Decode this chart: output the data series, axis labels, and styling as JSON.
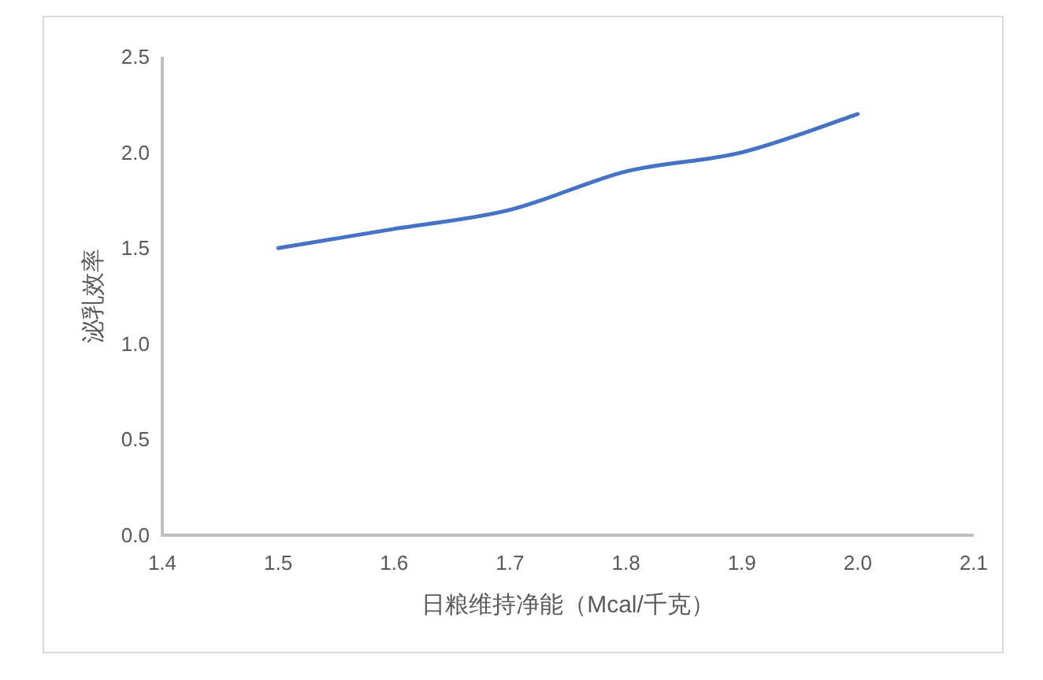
{
  "chart_data": {
    "type": "line",
    "xlabel": "日粮维持净能（Mcal/千克）",
    "ylabel": "泌乳效率",
    "x": [
      1.5,
      1.6,
      1.7,
      1.8,
      1.9,
      2.0
    ],
    "series": [
      {
        "color": "#4472c4",
        "values": [
          1.5,
          1.6,
          1.7,
          1.9,
          2.0,
          2.2
        ]
      }
    ],
    "xlim": [
      1.4,
      2.1
    ],
    "xticks": [
      1.4,
      1.5,
      1.6,
      1.7,
      1.8,
      1.9,
      {
        "value": 2.0,
        "label": "2.0"
      },
      2.1
    ],
    "ylim": [
      0,
      2.5
    ],
    "yticks": [
      {
        "value": 0,
        "label": "0.0"
      },
      0.5,
      {
        "value": 1,
        "label": "1.0"
      },
      1.5,
      {
        "value": 2,
        "label": "2.0"
      },
      2.5
    ],
    "grid": false
  }
}
